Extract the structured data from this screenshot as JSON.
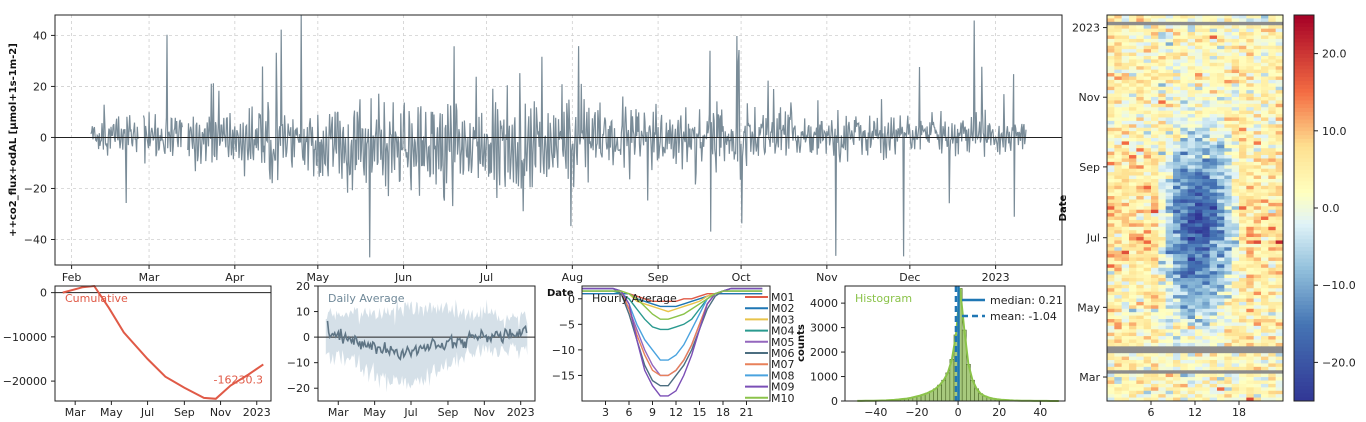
{
  "chart_data": [
    {
      "type": "line",
      "name": "timeseries",
      "ylabel": "++co2_flux+odAL  [µmol+1s-1m-2]",
      "xlabel": "",
      "x_ticks": [
        "Feb",
        "Mar",
        "Apr",
        "May",
        "Jun",
        "Jul",
        "Aug",
        "Sep",
        "Oct",
        "Nov",
        "Dec",
        "2023"
      ],
      "x_tick_days": [
        0,
        28,
        59,
        89,
        120,
        150,
        181,
        212,
        242,
        273,
        303,
        334
      ],
      "y_ticks": [
        40,
        20,
        0,
        -20,
        -40
      ],
      "ylim": [
        -50,
        48
      ],
      "x_range_days": [
        -6,
        358
      ],
      "data_range_days": [
        7,
        345
      ],
      "grid": true,
      "color": "#7a8c98",
      "zero_line": 0
    },
    {
      "type": "line",
      "name": "cumulative",
      "title": "Cumulative",
      "x_ticks": [
        "Mar",
        "May",
        "Jul",
        "Sep",
        "Nov",
        "2023"
      ],
      "x_tick_days": [
        28,
        89,
        150,
        212,
        273,
        334
      ],
      "y_ticks": [
        0,
        -10000,
        -20000
      ],
      "y_tick_labels": [
        "0",
        "−10000",
        "−20000"
      ],
      "ylim": [
        -24500,
        1500
      ],
      "x_range_days": [
        -6,
        358
      ],
      "final_label": "-16230.3",
      "points": [
        [
          7,
          0
        ],
        [
          40,
          1200
        ],
        [
          60,
          1500
        ],
        [
          85,
          -3500
        ],
        [
          110,
          -9000
        ],
        [
          150,
          -15000
        ],
        [
          180,
          -19000
        ],
        [
          212,
          -21500
        ],
        [
          245,
          -23800
        ],
        [
          265,
          -24000
        ],
        [
          290,
          -21000
        ],
        [
          320,
          -18500
        ],
        [
          345,
          -16230
        ]
      ],
      "color": "#e05a47"
    },
    {
      "type": "line",
      "name": "daily-average",
      "title": "Daily Average",
      "x_ticks": [
        "Mar",
        "May",
        "Jul",
        "Sep",
        "Nov",
        "2023"
      ],
      "x_tick_days": [
        28,
        89,
        150,
        212,
        273,
        334
      ],
      "y_ticks": [
        20,
        10,
        0,
        -10,
        -20
      ],
      "y_tick_labels": [
        "20",
        "10",
        "0",
        "−10",
        "−20"
      ],
      "ylim": [
        -25,
        20
      ],
      "x_range_days": [
        -6,
        358
      ],
      "mean_points": [
        [
          10,
          2
        ],
        [
          40,
          0
        ],
        [
          70,
          -2
        ],
        [
          100,
          -5
        ],
        [
          120,
          -6
        ],
        [
          150,
          -5
        ],
        [
          180,
          -3
        ],
        [
          210,
          -2
        ],
        [
          240,
          -1
        ],
        [
          270,
          0
        ],
        [
          300,
          1
        ],
        [
          330,
          1
        ],
        [
          345,
          2
        ]
      ],
      "color": "#5f7585",
      "band_color": "#d5e0e8"
    },
    {
      "type": "line",
      "name": "hourly-average",
      "title": "Hourly Average",
      "side_label": "Date",
      "x_ticks": [
        3,
        6,
        9,
        12,
        15,
        18,
        21
      ],
      "y_ticks": [
        0,
        -5,
        -10,
        -15
      ],
      "y_tick_labels": [
        "0",
        "−5",
        "−10",
        "−15"
      ],
      "xlim": [
        0,
        24
      ],
      "ylim": [
        -20,
        2.5
      ],
      "legend_placement": "right",
      "series": [
        {
          "name": "M01",
          "color": "#e05a47",
          "values": [
            1,
            1,
            1,
            1,
            1,
            1,
            1,
            0.5,
            0,
            -0.5,
            -0.5,
            -0.5,
            -0.5,
            0,
            0,
            0.5,
            1,
            1,
            1,
            1,
            1,
            1,
            1,
            1
          ]
        },
        {
          "name": "M02",
          "color": "#1f77b4",
          "values": [
            1,
            1,
            1,
            1,
            1,
            1,
            1,
            0,
            -0.5,
            -1,
            -1.5,
            -1.5,
            -1.5,
            -1,
            -0.5,
            0,
            0.5,
            1,
            1,
            1,
            1,
            1,
            1,
            1
          ]
        },
        {
          "name": "M03",
          "color": "#e8c34a",
          "values": [
            1.5,
            1.5,
            1.5,
            1.5,
            1.5,
            1.5,
            1,
            -0.5,
            -1,
            -1.5,
            -2,
            -2.5,
            -2,
            -1.5,
            -1,
            -0.5,
            0.5,
            1,
            1.5,
            1.5,
            1.5,
            1.5,
            1.5,
            1.5
          ]
        },
        {
          "name": "M04",
          "color": "#2a9a8f",
          "values": [
            1.5,
            1.5,
            1.5,
            1.5,
            1.5,
            1,
            0,
            -2,
            -4,
            -5.5,
            -6,
            -6,
            -5.5,
            -5,
            -4,
            -2,
            0,
            1,
            1.5,
            1.5,
            1.5,
            1.5,
            1.5,
            1.5
          ]
        },
        {
          "name": "M05",
          "color": "#9467bd",
          "values": [
            2,
            2,
            2,
            2,
            2,
            1,
            -2,
            -6,
            -10,
            -13,
            -15,
            -15,
            -14,
            -12,
            -9,
            -5,
            -1,
            1,
            1.5,
            2,
            2,
            2,
            2,
            2
          ]
        },
        {
          "name": "M06",
          "color": "#4c6e80",
          "values": [
            2,
            2,
            2,
            2,
            2,
            1,
            -3,
            -8,
            -13,
            -16,
            -17,
            -17,
            -15,
            -13,
            -10,
            -6,
            -2,
            0.5,
            1.5,
            2,
            2,
            2,
            2,
            2
          ]
        },
        {
          "name": "M07",
          "color": "#e8815a",
          "values": [
            2,
            2,
            2,
            2,
            2,
            1.5,
            -2,
            -7,
            -11,
            -14,
            -15,
            -15,
            -14,
            -12,
            -9,
            -5,
            -1,
            1,
            1.5,
            2,
            2,
            2,
            2,
            2
          ]
        },
        {
          "name": "M08",
          "color": "#4aa3df",
          "values": [
            2,
            2,
            2,
            2,
            2,
            1.5,
            -1,
            -5,
            -8,
            -10,
            -12,
            -12,
            -11,
            -9,
            -6,
            -3,
            0,
            1,
            1.5,
            2,
            2,
            2,
            2,
            2
          ]
        },
        {
          "name": "M09",
          "color": "#7b4fb6",
          "values": [
            2,
            2,
            2,
            2,
            2,
            1.5,
            -1,
            -8,
            -14,
            -17,
            -19,
            -19,
            -18,
            -15,
            -11,
            -6,
            -1,
            1,
            1.5,
            2,
            2,
            2,
            2,
            2
          ]
        },
        {
          "name": "M10",
          "color": "#8bc34a",
          "values": [
            1.5,
            1.5,
            1.5,
            1.5,
            1.5,
            1.5,
            1,
            0,
            -1.5,
            -3,
            -4,
            -4,
            -3.5,
            -3,
            -2,
            -1,
            0,
            1,
            1.5,
            1.5,
            1.5,
            1.5,
            1.5,
            1.5
          ]
        }
      ]
    },
    {
      "type": "bar",
      "name": "histogram",
      "title": "Histogram",
      "ylabel": "counts",
      "x_ticks": [
        -40,
        -20,
        0,
        20,
        40
      ],
      "x_tick_labels": [
        "−40",
        "−20",
        "0",
        "20",
        "40"
      ],
      "y_ticks": [
        0,
        1000,
        2000,
        3000,
        4000
      ],
      "xlim": [
        -55,
        52
      ],
      "ylim": [
        0,
        4700
      ],
      "bin_width": 2,
      "bin_starts": [
        -50,
        -48,
        -46,
        -44,
        -42,
        -40,
        -38,
        -36,
        -34,
        -32,
        -30,
        -28,
        -26,
        -24,
        -22,
        -20,
        -18,
        -16,
        -14,
        -12,
        -10,
        -8,
        -6,
        -4,
        -2,
        0,
        2,
        4,
        6,
        8,
        10,
        12,
        14,
        16,
        18,
        20,
        22,
        24,
        26,
        28,
        30,
        32,
        34,
        36,
        38,
        40,
        42,
        44,
        46,
        48
      ],
      "values": [
        5,
        5,
        8,
        10,
        12,
        15,
        20,
        25,
        35,
        45,
        60,
        80,
        100,
        130,
        170,
        210,
        260,
        320,
        400,
        500,
        650,
        850,
        1150,
        1700,
        2700,
        4600,
        2900,
        1500,
        850,
        500,
        300,
        200,
        140,
        100,
        75,
        55,
        40,
        30,
        22,
        15,
        12,
        10,
        8,
        6,
        5,
        4,
        3,
        2,
        2,
        1
      ],
      "median": 0.21,
      "mean": -1.04,
      "legend": [
        "median: 0.21",
        "mean: -1.04"
      ],
      "legend_placement": "top-right",
      "color": "#a7c97d",
      "edge_color": "#4f6b2a",
      "kde_color": "#8bc34a",
      "line_color": "#1f77b4"
    },
    {
      "type": "heatmap",
      "name": "fingerprint",
      "ylabel": "Date",
      "y_ticks": [
        "2023",
        "Nov",
        "Sep",
        "Jul",
        "May",
        "Mar"
      ],
      "y_tick_days": [
        334,
        273,
        212,
        150,
        89,
        28
      ],
      "x_ticks": [
        6,
        12,
        18
      ],
      "xlim": [
        0,
        24
      ],
      "y_range_days": [
        7,
        345
      ],
      "colorbar_ticks": [
        20.0,
        10.0,
        0.0,
        -10.0,
        -20.0
      ],
      "colorbar_tick_labels": [
        "20.0",
        "10.0",
        "0.0",
        "−10.0",
        "−20.0"
      ],
      "colorbar_range": [
        -25,
        25
      ],
      "cmap": "RdYlBu_r"
    }
  ]
}
